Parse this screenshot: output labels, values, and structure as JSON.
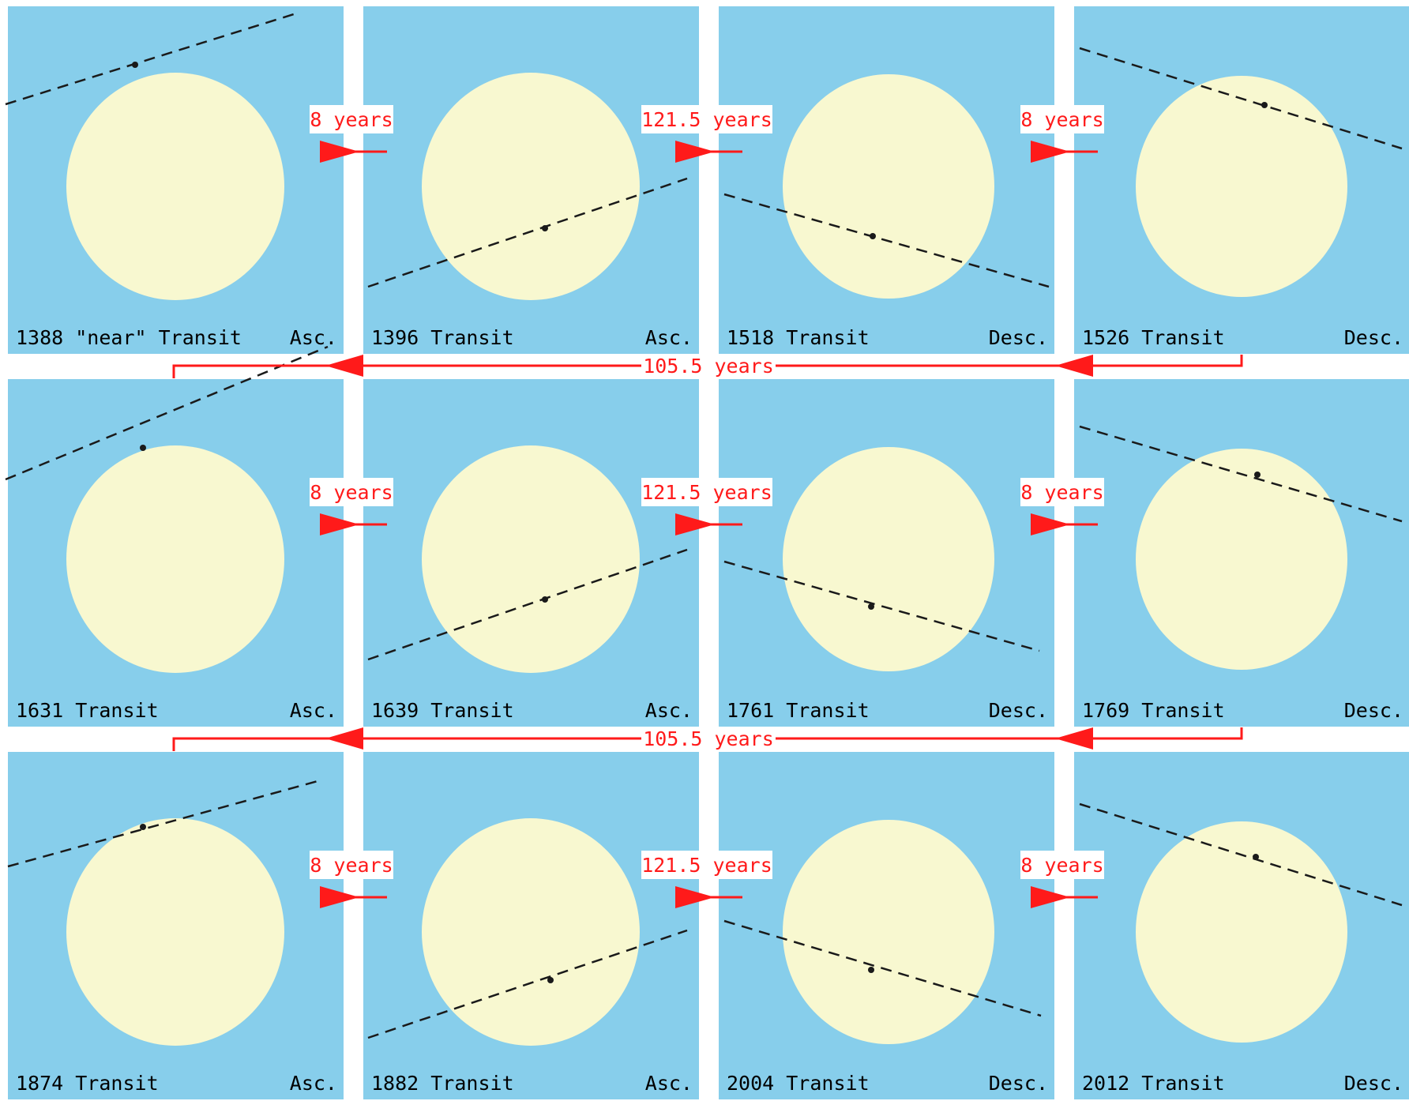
{
  "colors": {
    "sky": "#87ceeb",
    "sun": "#f8f8d0",
    "path": "#1a1a1a",
    "arrow": "#ff1a1a",
    "separator": "#ffffff"
  },
  "panels": [
    {
      "year_label": "1388 \"near\" Transit",
      "node": "Asc."
    },
    {
      "year_label": "1396 Transit",
      "node": "Asc."
    },
    {
      "year_label": "1518 Transit",
      "node": "Desc."
    },
    {
      "year_label": "1526 Transit",
      "node": "Desc."
    },
    {
      "year_label": "1631 Transit",
      "node": "Asc."
    },
    {
      "year_label": "1639 Transit",
      "node": "Asc."
    },
    {
      "year_label": "1761 Transit",
      "node": "Desc."
    },
    {
      "year_label": "1769 Transit",
      "node": "Desc."
    },
    {
      "year_label": "1874 Transit",
      "node": "Asc."
    },
    {
      "year_label": "1882 Transit",
      "node": "Asc."
    },
    {
      "year_label": "2004 Transit",
      "node": "Desc."
    },
    {
      "year_label": "2012 Transit",
      "node": "Desc."
    }
  ],
  "intervals": {
    "short": "8 years",
    "long": "121.5 years",
    "cycle": "105.5 years"
  }
}
